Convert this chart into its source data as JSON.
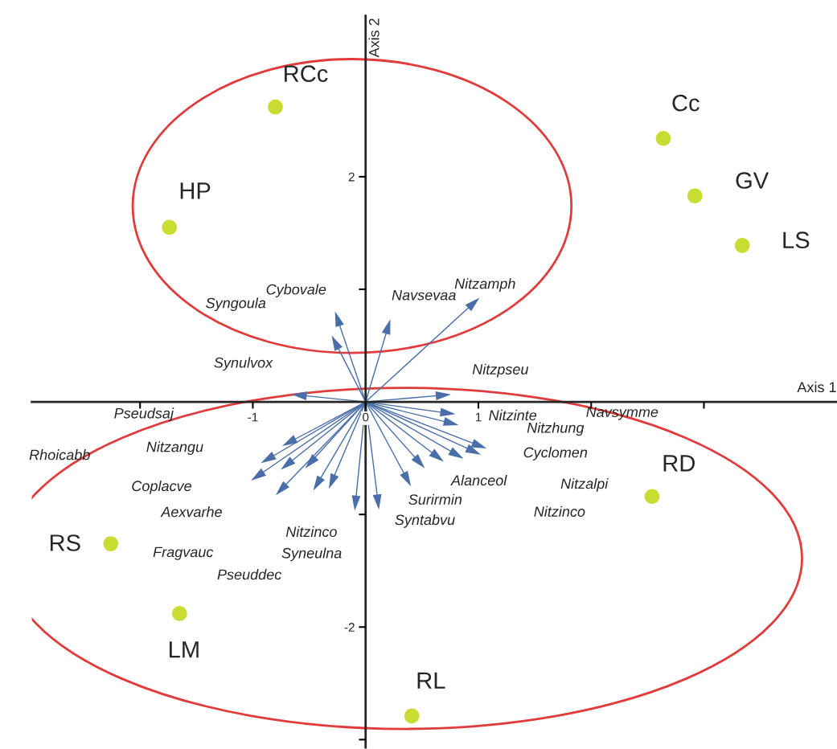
{
  "chart_data": {
    "type": "scatter",
    "xlabel": "Axis 1",
    "ylabel": "Axis 2",
    "xlim": [
      -2.96,
      4.18
    ],
    "ylim": [
      -3.07,
      3.43
    ],
    "xticks": [
      {
        "value": -2,
        "label": null
      },
      {
        "value": -1,
        "label": "-1"
      },
      0,
      1,
      {
        "value": 2,
        "label": null
      },
      {
        "value": 3,
        "label": null
      }
    ],
    "yticks": [
      {
        "value": -3,
        "label": null
      },
      -2,
      {
        "value": -1,
        "label": null
      },
      {
        "value": 1,
        "label": null
      },
      2
    ],
    "grid": false,
    "marker": "circle",
    "series": [
      {
        "color": "#c8dc32",
        "x": [
          -0.8,
          -1.74,
          2.64,
          2.92,
          3.34,
          2.54,
          -2.26,
          -1.65,
          0.41
        ],
        "values": [
          2.62,
          1.55,
          2.34,
          1.83,
          1.39,
          -0.84,
          -1.26,
          -1.88,
          -2.79
        ]
      },
      {
        "marker": "triangle",
        "color": "#4a6ea8",
        "x": [
          0.96,
          0.2,
          -0.25,
          -0.27,
          -0.59,
          0.69,
          0.73,
          0.76,
          1.01,
          0.96,
          0.81,
          0.64,
          0.48,
          0.37,
          0.11,
          -0.68,
          -0.87,
          -0.96,
          -0.7,
          -0.75,
          -0.49,
          -0.43,
          -0.3,
          -0.09
        ],
        "values": [
          0.88,
          0.67,
          0.74,
          0.53,
          0.06,
          0.06,
          -0.1,
          -0.19,
          -0.39,
          -0.44,
          -0.47,
          -0.49,
          -0.54,
          -0.69,
          -0.89,
          -0.36,
          -0.51,
          -0.66,
          -0.56,
          -0.78,
          -0.54,
          -0.73,
          -0.71,
          -0.9
        ]
      }
    ],
    "annotations": [
      {
        "text": "RCc",
        "x": -0.8,
        "y": 2.62
      },
      {
        "text": "HP",
        "x": -1.74,
        "y": 1.55
      },
      {
        "text": "Cc",
        "x": 2.64,
        "y": 2.34
      },
      {
        "text": "GV",
        "x": 2.92,
        "y": 1.83
      },
      {
        "text": "LS",
        "x": 3.34,
        "y": 1.39
      },
      {
        "text": "RD",
        "x": 2.54,
        "y": -0.84
      },
      {
        "text": "RS",
        "x": -2.26,
        "y": -1.26
      },
      {
        "text": "LM",
        "x": -1.65,
        "y": -1.88
      },
      {
        "text": "RL",
        "x": 0.41,
        "y": -2.79
      },
      "Nitzamph",
      "Navsevaa",
      "Cybovale",
      "Syngoula",
      "Synulvox",
      "Nitzpseu",
      "Nitzinte",
      "Navsymme",
      "Nitzhung",
      "Cyclomen",
      "Nitzalpi",
      "Nitzinco",
      "Alanceol",
      "Surirmin",
      "Syntabvu",
      "Pseudsaj",
      "Nitzangu",
      "Rhoicabb",
      "Coplacve",
      "Aexvarhe",
      "Nitzinco",
      "Fragvauc",
      "Syneulna",
      "Pseuddec"
    ]
  }
}
